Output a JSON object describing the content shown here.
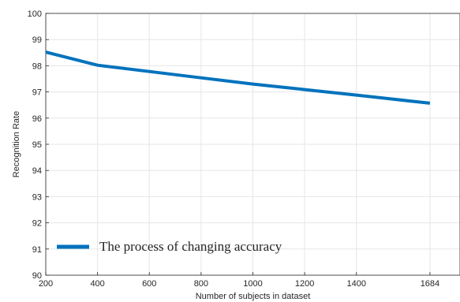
{
  "chart_data": {
    "type": "line",
    "title": "",
    "xlabel": "Number of subjects in dataset",
    "ylabel": "Recognition Rate",
    "xlim": [
      200,
      1800
    ],
    "ylim": [
      90,
      100
    ],
    "x_ticks": [
      200,
      400,
      600,
      800,
      1000,
      1200,
      1400,
      1684
    ],
    "y_ticks": [
      90,
      91,
      92,
      93,
      94,
      95,
      96,
      97,
      98,
      99,
      100
    ],
    "grid": true,
    "legend_position": "bottom-left",
    "series": [
      {
        "name": "The process of changing accuracy",
        "color": "#0072BD",
        "x": [
          200,
          400,
          600,
          800,
          1000,
          1200,
          1400,
          1684
        ],
        "y": [
          98.52,
          98.02,
          97.78,
          97.54,
          97.3,
          97.09,
          96.88,
          96.57
        ]
      }
    ]
  }
}
